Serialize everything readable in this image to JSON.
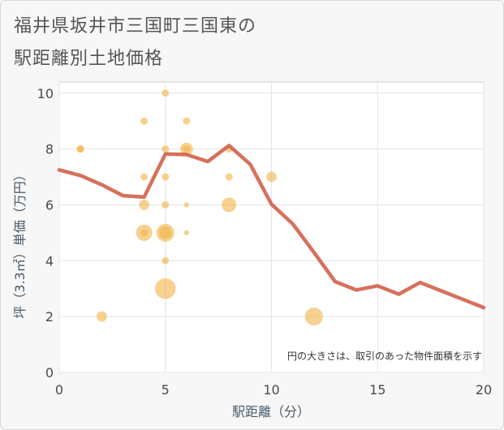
{
  "title_line1": "福井県坂井市三国町三国東の",
  "title_line2": "駅距離別土地価格",
  "chart_data": {
    "type": "scatter",
    "xlabel": "駅距離（分）",
    "ylabel": "坪（3.3㎡）単価（万円）",
    "xlim": [
      0,
      20
    ],
    "ylim": [
      0,
      10.4
    ],
    "x_ticks": [
      0,
      5,
      10,
      15,
      20
    ],
    "y_ticks": [
      0,
      2,
      4,
      6,
      8,
      10
    ],
    "grid": true,
    "annotation": "円の大きさは、取引のあった物件面積を示す",
    "colors": {
      "bubble": "#f2b44a",
      "line": "#d2604a",
      "plot_bg": "#ffffff"
    },
    "bubbles": [
      {
        "x": 1,
        "y": 8,
        "size": 1
      },
      {
        "x": 1,
        "y": 8,
        "size": 1
      },
      {
        "x": 2,
        "y": 2,
        "size": 2
      },
      {
        "x": 4,
        "y": 9,
        "size": 1
      },
      {
        "x": 4,
        "y": 7,
        "size": 1
      },
      {
        "x": 4,
        "y": 6,
        "size": 2
      },
      {
        "x": 4,
        "y": 5,
        "size": 5
      },
      {
        "x": 4,
        "y": 5,
        "size": 1
      },
      {
        "x": 5,
        "y": 10,
        "size": 1
      },
      {
        "x": 5,
        "y": 8,
        "size": 1
      },
      {
        "x": 5,
        "y": 7,
        "size": 1
      },
      {
        "x": 5,
        "y": 6,
        "size": 1
      },
      {
        "x": 5,
        "y": 5,
        "size": 6
      },
      {
        "x": 5,
        "y": 5,
        "size": 3
      },
      {
        "x": 5,
        "y": 4,
        "size": 1
      },
      {
        "x": 5,
        "y": 3,
        "size": 8
      },
      {
        "x": 6,
        "y": 9,
        "size": 1
      },
      {
        "x": 6,
        "y": 8,
        "size": 3
      },
      {
        "x": 6,
        "y": 8,
        "size": 1
      },
      {
        "x": 6,
        "y": 6,
        "size": 0.5
      },
      {
        "x": 6,
        "y": 5,
        "size": 0.5
      },
      {
        "x": 8,
        "y": 8,
        "size": 1
      },
      {
        "x": 8,
        "y": 7,
        "size": 1
      },
      {
        "x": 8,
        "y": 6,
        "size": 4
      },
      {
        "x": 10,
        "y": 7,
        "size": 2
      },
      {
        "x": 12,
        "y": 2,
        "size": 6
      }
    ],
    "line": {
      "x": [
        0,
        1,
        2,
        3,
        4,
        5,
        6,
        7,
        8,
        9,
        10,
        11,
        12,
        13,
        14,
        15,
        16,
        17,
        18,
        19,
        20
      ],
      "y": [
        7.25,
        7.05,
        6.72,
        6.33,
        6.28,
        7.82,
        7.8,
        7.55,
        8.12,
        7.45,
        6.02,
        5.32,
        4.3,
        3.25,
        2.95,
        3.1,
        2.8,
        3.22,
        2.92,
        2.62,
        2.32
      ]
    }
  }
}
